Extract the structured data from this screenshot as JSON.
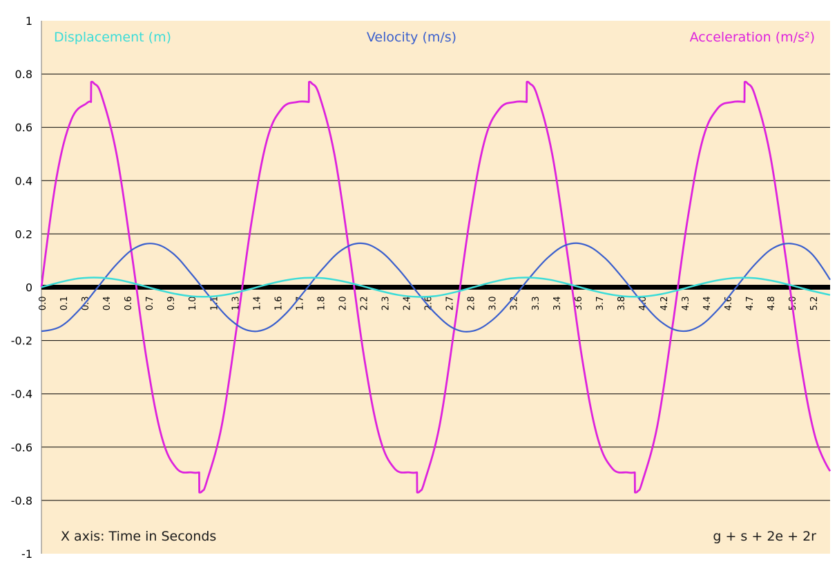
{
  "chart_data": {
    "type": "line",
    "title": "",
    "xlabel": "",
    "ylabel": "",
    "xlim": [
      0.0,
      5.25
    ],
    "ylim": [
      -1,
      1
    ],
    "y_ticks": [
      1,
      0.8,
      0.6,
      0.4,
      0.2,
      0,
      -0.2,
      -0.4,
      -0.6,
      -0.8,
      -1
    ],
    "y_tick_labels": [
      "1",
      "0.8",
      "0.6",
      "0.4",
      "0.2",
      "0",
      "-0.2",
      "-0.4",
      "-0.6",
      "-0.8",
      "-1"
    ],
    "x_tick_labels": [
      "0.0",
      "0.1",
      "0.3",
      "0.4",
      "0.6",
      "0.7",
      "0.9",
      "1.0",
      "1.1",
      "1.3",
      "1.4",
      "1.6",
      "1.7",
      "1.8",
      "2.0",
      "2.2",
      "2.3",
      "2.4",
      "2.6",
      "2.7",
      "2.8",
      "3.0",
      "3.2",
      "3.3",
      "3.4",
      "3.6",
      "3.7",
      "3.8",
      "4.0",
      "4.2",
      "4.3",
      "4.4",
      "4.6",
      "4.7",
      "4.8",
      "5.0",
      "5.2"
    ],
    "grid": true,
    "legend_placement": "top",
    "annotations": [
      "X axis: Time in Seconds",
      "g + s + 2e + 2r"
    ],
    "series": [
      {
        "name": "Displacement (m)",
        "color": "#3cdcd8",
        "x": [
          0.0,
          0.125,
          0.25,
          0.375,
          0.5,
          0.625,
          0.75,
          0.875,
          1.0,
          1.125,
          1.25,
          1.375,
          1.5,
          1.625,
          1.75,
          1.875,
          2.0,
          2.125,
          2.25,
          2.375,
          2.5,
          2.625,
          2.75,
          2.875,
          3.0,
          3.125,
          3.25,
          3.375,
          3.5,
          3.625,
          3.75,
          3.875,
          4.0,
          4.125,
          4.25,
          4.375,
          4.5,
          4.625,
          4.75,
          4.875,
          5.0,
          5.125,
          5.25
        ],
        "values": [
          0.0,
          0.019,
          0.033,
          0.036,
          0.029,
          0.013,
          -0.006,
          -0.023,
          -0.034,
          -0.035,
          -0.026,
          -0.009,
          0.01,
          0.026,
          0.035,
          0.034,
          0.023,
          0.006,
          -0.013,
          -0.029,
          -0.036,
          -0.033,
          -0.019,
          0.0,
          0.019,
          0.033,
          0.036,
          0.029,
          0.013,
          -0.006,
          -0.023,
          -0.034,
          -0.035,
          -0.026,
          -0.009,
          0.01,
          0.026,
          0.035,
          0.034,
          0.023,
          0.006,
          -0.013,
          -0.029
        ]
      },
      {
        "name": "Velocity (m/s)",
        "color": "#3a5fcd",
        "x": [
          0.0,
          0.125,
          0.25,
          0.375,
          0.5,
          0.625,
          0.75,
          0.875,
          1.0,
          1.125,
          1.25,
          1.375,
          1.5,
          1.625,
          1.75,
          1.875,
          2.0,
          2.125,
          2.25,
          2.375,
          2.5,
          2.625,
          2.75,
          2.875,
          3.0,
          3.125,
          3.25,
          3.375,
          3.5,
          3.625,
          3.75,
          3.875,
          4.0,
          4.125,
          4.25,
          4.375,
          4.5,
          4.625,
          4.75,
          4.875,
          5.0,
          5.125,
          5.25
        ],
        "values": [
          -0.165,
          -0.148,
          -0.086,
          0.0,
          0.086,
          0.148,
          0.163,
          0.127,
          0.049,
          -0.039,
          -0.118,
          -0.162,
          -0.155,
          -0.1,
          -0.016,
          0.071,
          0.14,
          0.165,
          0.138,
          0.069,
          -0.018,
          -0.1,
          -0.156,
          -0.164,
          -0.124,
          -0.051,
          0.036,
          0.113,
          0.16,
          0.158,
          0.11,
          0.031,
          -0.057,
          -0.13,
          -0.164,
          -0.148,
          -0.086,
          0.0,
          0.086,
          0.148,
          0.163,
          0.127,
          0.028
        ]
      },
      {
        "name": "Acceleration (m/s²)",
        "color": "#dd22dd",
        "x": [
          0.0,
          0.1,
          0.2,
          0.3,
          0.33,
          0.331,
          0.35,
          0.4,
          0.5,
          0.6,
          0.7,
          0.8,
          0.9,
          1.0,
          1.05,
          1.051,
          1.07,
          1.1,
          1.2,
          1.3,
          1.4,
          1.5,
          1.6,
          1.7,
          1.78,
          1.781,
          1.8,
          1.85,
          1.95,
          2.05,
          2.15,
          2.25,
          2.35,
          2.45,
          2.5,
          2.501,
          2.52,
          2.55,
          2.65,
          2.75,
          2.85,
          2.95,
          3.05,
          3.15,
          3.23,
          3.231,
          3.25,
          3.3,
          3.4,
          3.5,
          3.6,
          3.7,
          3.8,
          3.9,
          3.95,
          3.951,
          3.97,
          4.0,
          4.1,
          4.2,
          4.3,
          4.4,
          4.5,
          4.6,
          4.68,
          4.681,
          4.7,
          4.75,
          4.85,
          4.95,
          5.05,
          5.15,
          5.25
        ],
        "values": [
          0.0,
          0.41,
          0.63,
          0.69,
          0.695,
          0.77,
          0.765,
          0.72,
          0.5,
          0.13,
          -0.27,
          -0.56,
          -0.68,
          -0.695,
          -0.695,
          -0.77,
          -0.765,
          -0.73,
          -0.52,
          -0.15,
          0.25,
          0.55,
          0.67,
          0.695,
          0.695,
          0.77,
          0.765,
          0.72,
          0.5,
          0.13,
          -0.27,
          -0.56,
          -0.68,
          -0.695,
          -0.695,
          -0.77,
          -0.765,
          -0.73,
          -0.52,
          -0.15,
          0.25,
          0.55,
          0.67,
          0.695,
          0.695,
          0.77,
          0.765,
          0.72,
          0.5,
          0.13,
          -0.27,
          -0.56,
          -0.68,
          -0.695,
          -0.695,
          -0.77,
          -0.765,
          -0.73,
          -0.52,
          -0.15,
          0.25,
          0.55,
          0.67,
          0.695,
          0.695,
          0.77,
          0.765,
          0.72,
          0.5,
          0.13,
          -0.27,
          -0.56,
          -0.69
        ]
      }
    ]
  }
}
